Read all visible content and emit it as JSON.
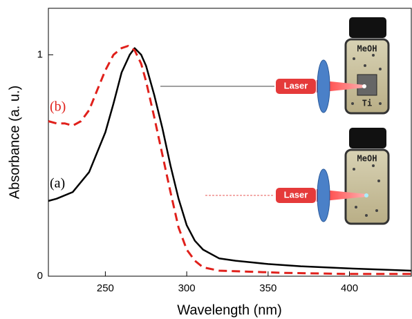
{
  "chart_data": {
    "type": "line",
    "x_label": "Wavelength (nm)",
    "y_label": "Absorbance (a. u.)",
    "xlim": [
      215,
      438
    ],
    "ylim": [
      0,
      1.21
    ],
    "xticks": [
      250,
      300,
      350,
      400
    ],
    "yticks": [
      0,
      1
    ],
    "series": [
      {
        "name": "(a)",
        "color": "#000000",
        "dash": false,
        "x": [
          215,
          220,
          230,
          240,
          250,
          255,
          260,
          265,
          268,
          272,
          275,
          280,
          285,
          290,
          295,
          300,
          305,
          310,
          320,
          330,
          350,
          370,
          400,
          438
        ],
        "values": [
          0.34,
          0.35,
          0.38,
          0.47,
          0.65,
          0.78,
          0.92,
          1.0,
          1.03,
          1.0,
          0.95,
          0.82,
          0.67,
          0.5,
          0.35,
          0.23,
          0.16,
          0.12,
          0.08,
          0.07,
          0.055,
          0.045,
          0.035,
          0.025
        ]
      },
      {
        "name": "(b)",
        "color": "#e0201b",
        "dash": true,
        "x": [
          215,
          220,
          225,
          230,
          235,
          240,
          245,
          250,
          255,
          260,
          264,
          268,
          272,
          275,
          280,
          285,
          290,
          295,
          300,
          305,
          310,
          320,
          340,
          360,
          400,
          438
        ],
        "values": [
          0.7,
          0.69,
          0.69,
          0.68,
          0.7,
          0.75,
          0.84,
          0.93,
          1.0,
          1.03,
          1.04,
          1.02,
          0.96,
          0.88,
          0.72,
          0.55,
          0.38,
          0.22,
          0.12,
          0.07,
          0.04,
          0.025,
          0.02,
          0.015,
          0.01,
          0.01
        ]
      }
    ],
    "annotations": [
      "Laser",
      "Laser",
      "MeOH",
      "MeOH",
      "Ti"
    ]
  }
}
